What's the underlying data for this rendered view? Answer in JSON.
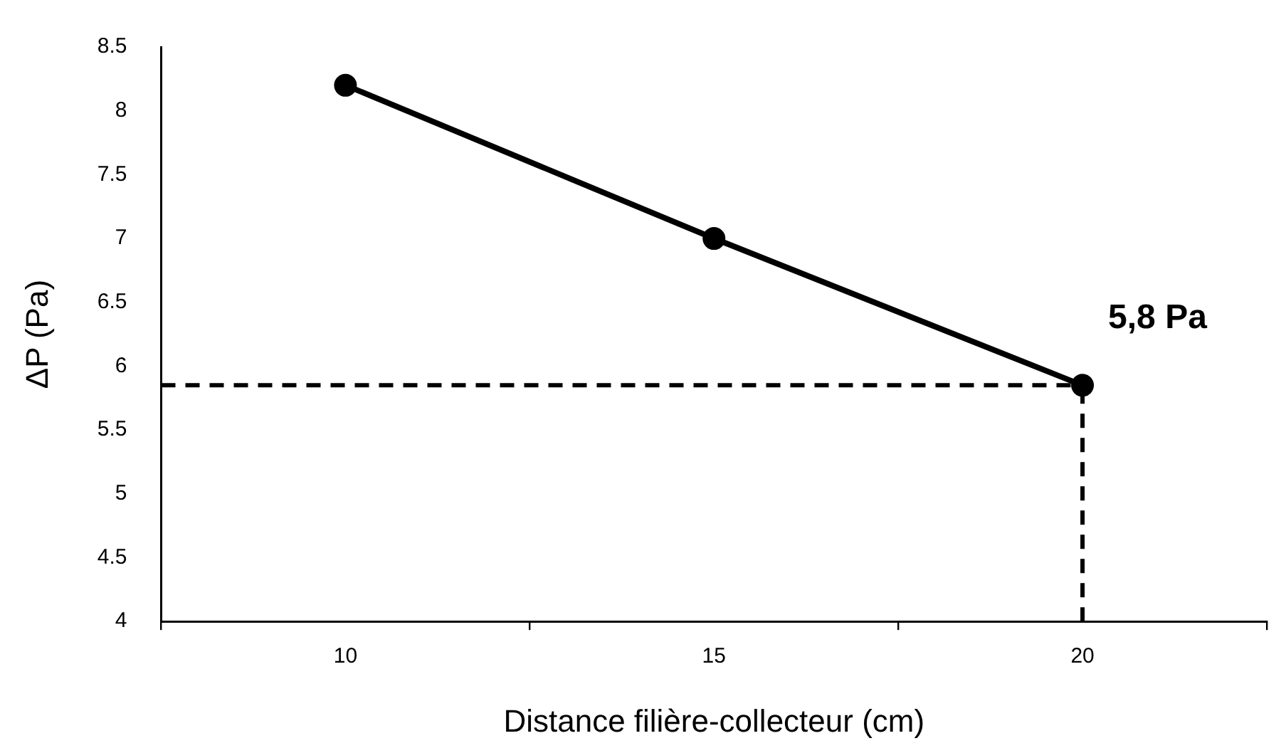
{
  "chart_data": {
    "type": "line",
    "xlabel": "Distance filière-collecteur (cm)",
    "ylabel": "ΔP (Pa)",
    "categories": [
      "10",
      "15",
      "20"
    ],
    "series": [
      {
        "color": "#000000",
        "values": [
          8.2,
          7.0,
          5.85
        ]
      }
    ],
    "ylim": [
      4,
      8.5
    ],
    "yticks": [
      4,
      {
        "value": 4.5,
        "label": "4.5"
      },
      5,
      {
        "value": 5.5,
        "label": "5.5"
      },
      6,
      {
        "value": 6.5,
        "label": "6.5"
      },
      7,
      {
        "value": 7.5,
        "label": "7.5"
      },
      8,
      {
        "value": 8.5,
        "label": "8.5"
      }
    ],
    "grid": false,
    "legend": false,
    "marker": "circle",
    "line_style": "solid",
    "ref_lines": [
      {
        "axis": "y",
        "value": 5.85,
        "color": "#000000",
        "line_style": "dashed"
      },
      {
        "axis": "x",
        "value": "20",
        "color": "#000000",
        "line_style": "dashed"
      }
    ],
    "annotations": [
      {
        "text": "5,8 Pa",
        "x": "20",
        "y": 5.85
      }
    ]
  }
}
